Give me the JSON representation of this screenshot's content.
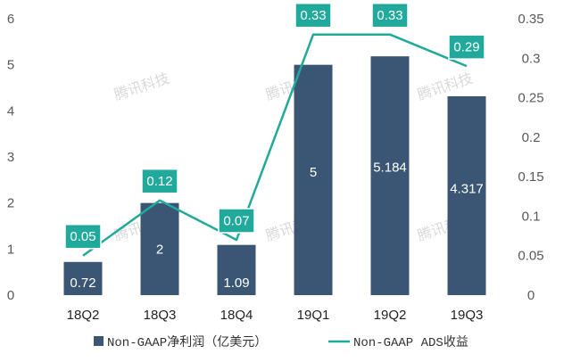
{
  "chart_data": {
    "type": "bar+line",
    "categories": [
      "18Q2",
      "18Q3",
      "18Q4",
      "19Q1",
      "19Q2",
      "19Q3"
    ],
    "series": [
      {
        "name": "Non-GAAP净利润（亿美元）",
        "type": "bar",
        "axis": "left",
        "values": [
          0.72,
          2,
          1.09,
          5,
          5.184,
          4.317
        ],
        "labels": [
          "0.72",
          "2",
          "1.09",
          "5",
          "5.184",
          "4.317"
        ]
      },
      {
        "name": "Non-GAAP ADS收益",
        "type": "line",
        "axis": "right",
        "values": [
          0.05,
          0.12,
          0.07,
          0.33,
          0.33,
          0.29
        ],
        "labels": [
          "0.05",
          "0.12",
          "0.07",
          "0.33",
          "0.33",
          "0.29"
        ]
      }
    ],
    "left_axis": {
      "min": 0,
      "max": 6,
      "ticks": [
        "0",
        "1",
        "2",
        "3",
        "4",
        "5",
        "6"
      ]
    },
    "right_axis": {
      "min": 0,
      "max": 0.35,
      "ticks": [
        "0",
        "0.05",
        "0.1",
        "0.15",
        "0.2",
        "0.25",
        "0.3",
        "0.35"
      ]
    },
    "legend_position": "bottom",
    "grid": false,
    "colors": {
      "bar": "#3b5675",
      "line": "#21a99c",
      "label_box": "#21a99c"
    },
    "watermark": "腾讯科技"
  }
}
